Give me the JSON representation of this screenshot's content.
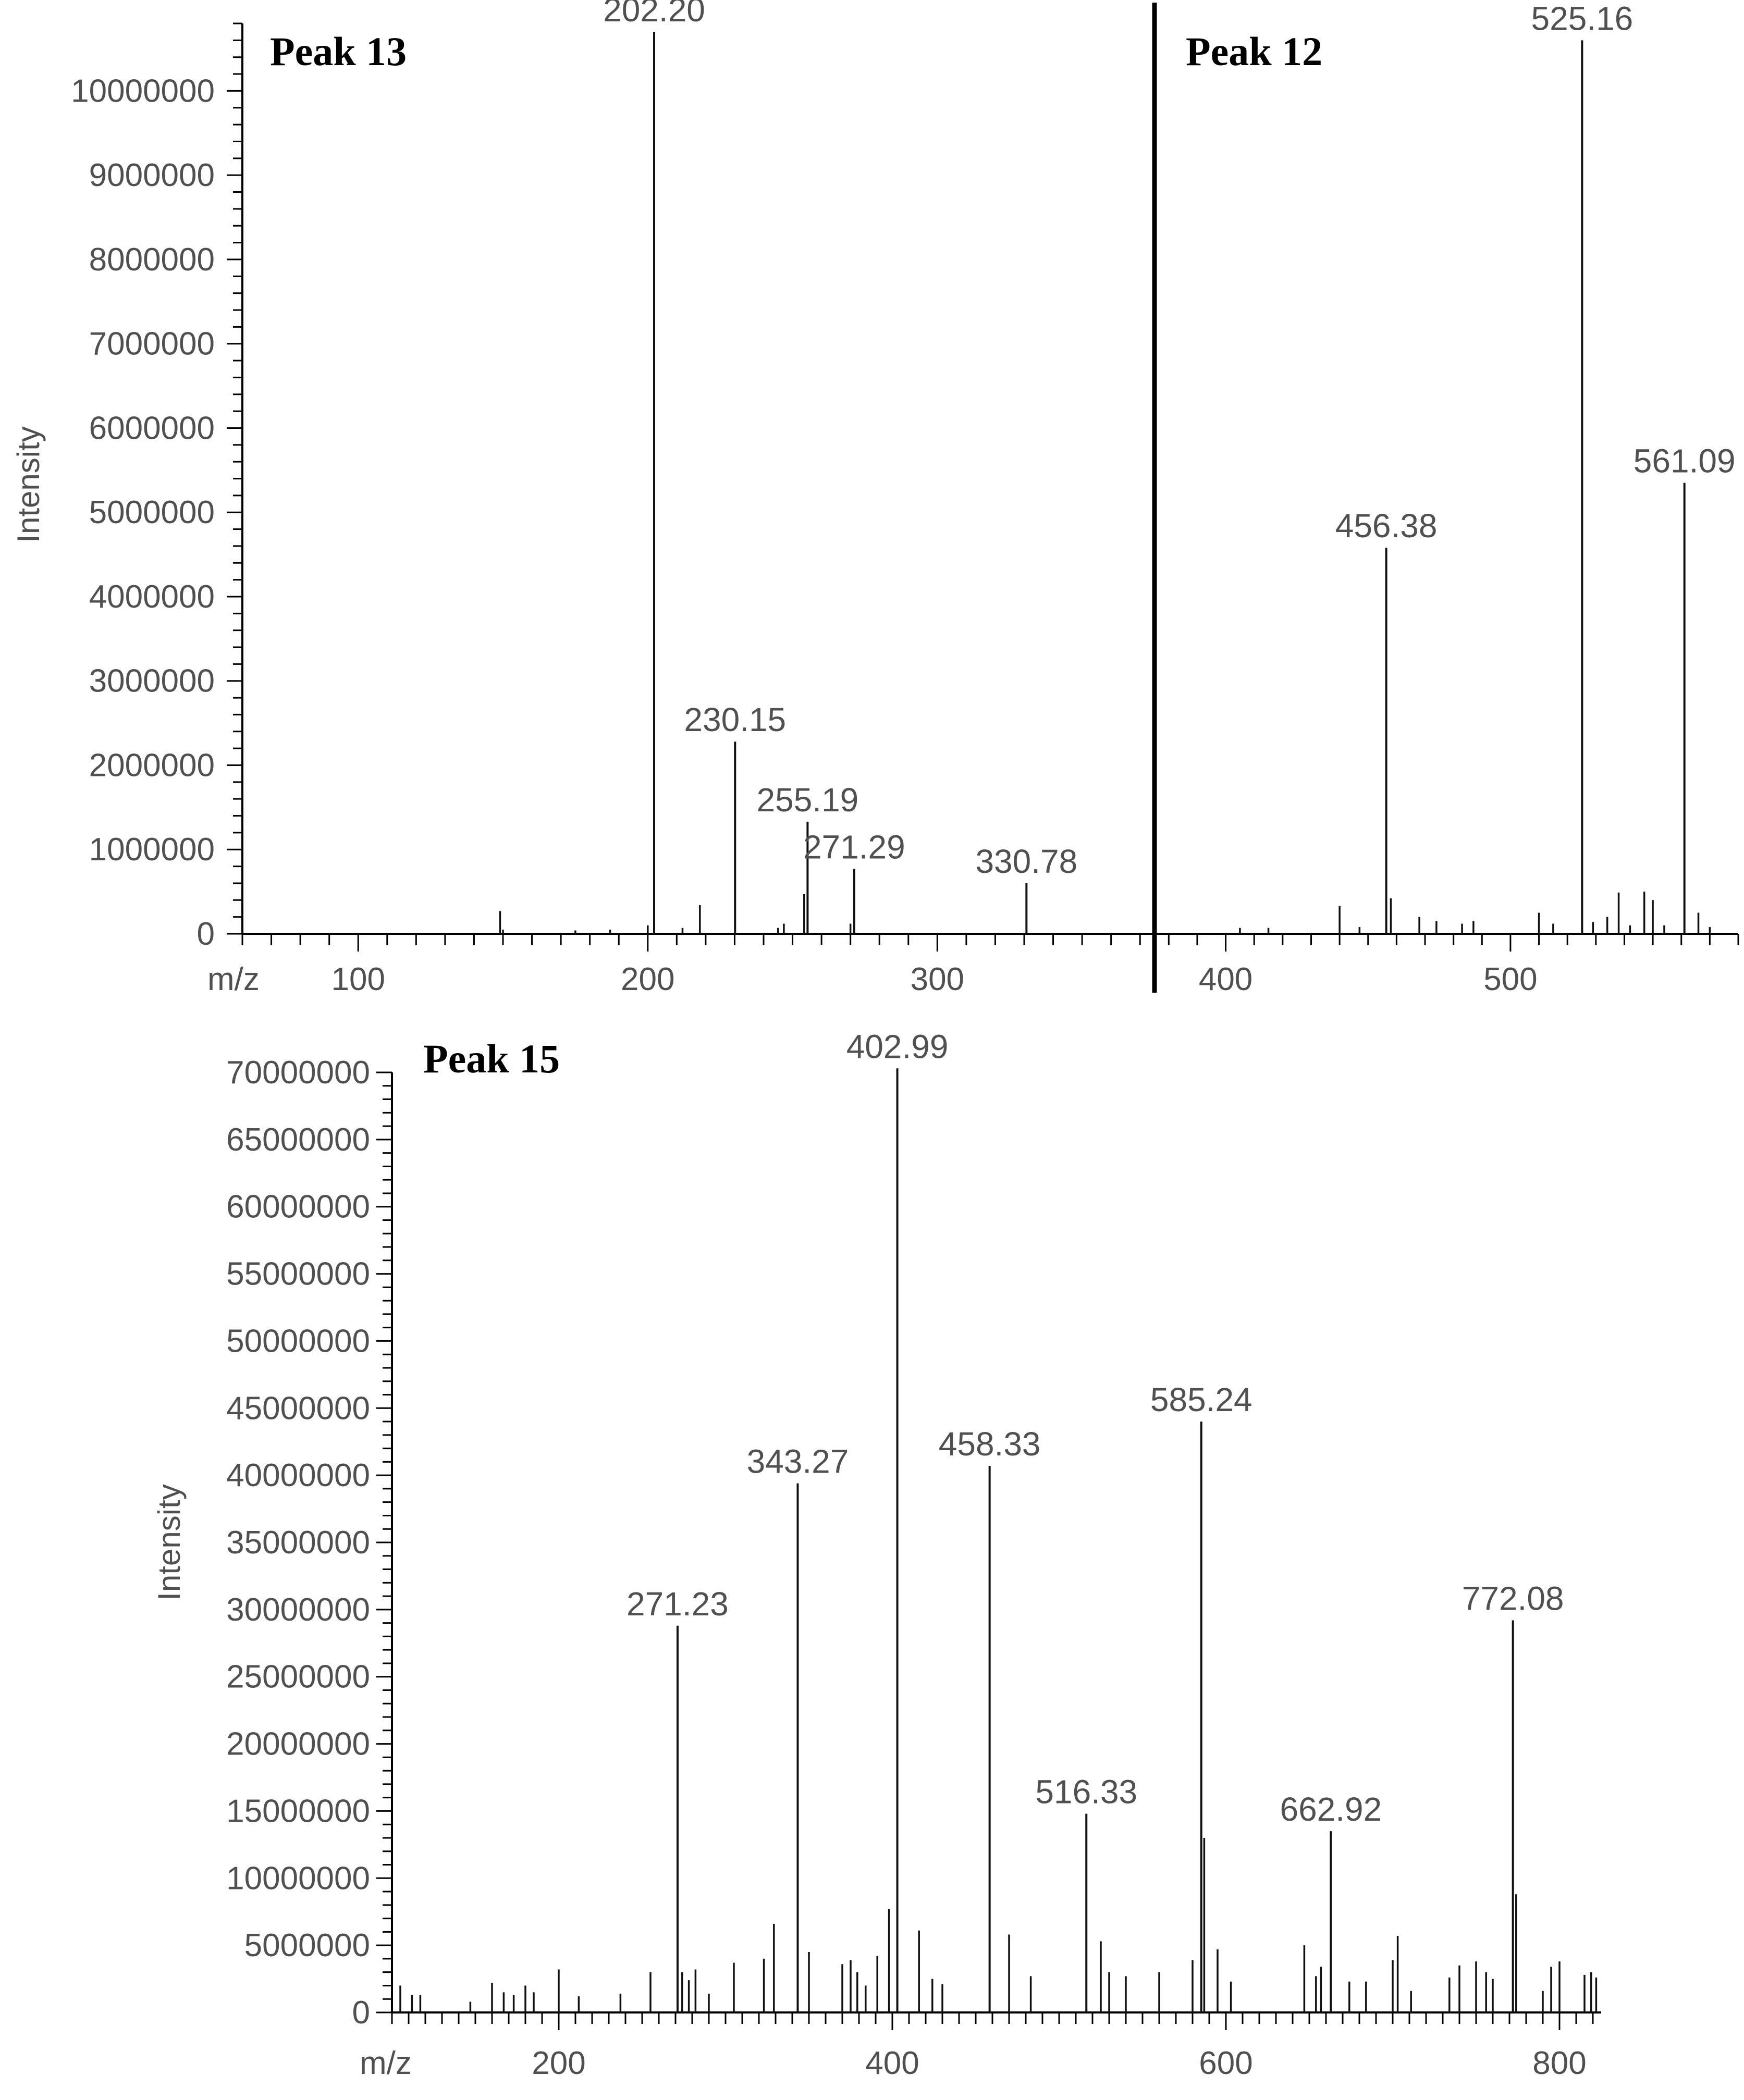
{
  "chart_data": [
    {
      "type": "bar",
      "panel_label": "Peak 13",
      "xlabel": "m/z",
      "ylabel": "Intensity",
      "xlim": [
        60,
        375
      ],
      "ylim": [
        0,
        10800000
      ],
      "x_ticks": [
        100,
        200,
        300
      ],
      "y_ticks": [
        0,
        1000000,
        2000000,
        3000000,
        4000000,
        5000000,
        6000000,
        7000000,
        8000000,
        9000000,
        10000000
      ],
      "labeled_peaks": [
        {
          "mz": 202.2,
          "label": "202.20",
          "intensity": 10700000
        },
        {
          "mz": 230.15,
          "label": "230.15",
          "intensity": 2280000
        },
        {
          "mz": 255.19,
          "label": "255.19",
          "intensity": 1330000
        },
        {
          "mz": 271.29,
          "label": "271.29",
          "intensity": 770000
        },
        {
          "mz": 330.78,
          "label": "330.78",
          "intensity": 600000
        }
      ],
      "minor_peaks": [
        {
          "mz": 149,
          "intensity": 270000
        },
        {
          "mz": 150,
          "intensity": 50000
        },
        {
          "mz": 175,
          "intensity": 40000
        },
        {
          "mz": 187,
          "intensity": 50000
        },
        {
          "mz": 200,
          "intensity": 100000
        },
        {
          "mz": 212,
          "intensity": 70000
        },
        {
          "mz": 218,
          "intensity": 340000
        },
        {
          "mz": 245,
          "intensity": 70000
        },
        {
          "mz": 247,
          "intensity": 120000
        },
        {
          "mz": 254,
          "intensity": 470000
        },
        {
          "mz": 270,
          "intensity": 120000
        }
      ]
    },
    {
      "type": "bar",
      "panel_label": "Peak 12",
      "xlim": [
        375,
        580
      ],
      "ylim": [
        0,
        10800000
      ],
      "x_ticks": [
        400,
        500
      ],
      "labeled_peaks": [
        {
          "mz": 456.38,
          "label": "456.38",
          "intensity": 4580000
        },
        {
          "mz": 525.16,
          "label": "525.16",
          "intensity": 10600000
        },
        {
          "mz": 561.09,
          "label": "561.09",
          "intensity": 5350000
        }
      ],
      "minor_peaks": [
        {
          "mz": 405,
          "intensity": 70000
        },
        {
          "mz": 415,
          "intensity": 70000
        },
        {
          "mz": 440,
          "intensity": 330000
        },
        {
          "mz": 447,
          "intensity": 80000
        },
        {
          "mz": 458,
          "intensity": 420000
        },
        {
          "mz": 468,
          "intensity": 200000
        },
        {
          "mz": 474,
          "intensity": 150000
        },
        {
          "mz": 483,
          "intensity": 120000
        },
        {
          "mz": 487,
          "intensity": 150000
        },
        {
          "mz": 510,
          "intensity": 250000
        },
        {
          "mz": 515,
          "intensity": 120000
        },
        {
          "mz": 529,
          "intensity": 140000
        },
        {
          "mz": 534,
          "intensity": 200000
        },
        {
          "mz": 538,
          "intensity": 490000
        },
        {
          "mz": 542,
          "intensity": 100000
        },
        {
          "mz": 547,
          "intensity": 500000
        },
        {
          "mz": 550,
          "intensity": 400000
        },
        {
          "mz": 554,
          "intensity": 100000
        },
        {
          "mz": 566,
          "intensity": 250000
        },
        {
          "mz": 570,
          "intensity": 80000
        }
      ]
    },
    {
      "type": "bar",
      "panel_label": "Peak 15",
      "xlabel": "m/z",
      "ylabel": "Intensity",
      "xlim": [
        100,
        825
      ],
      "ylim": [
        0,
        70000000
      ],
      "x_ticks": [
        200,
        400,
        600,
        800
      ],
      "y_ticks": [
        0,
        5000000,
        10000000,
        15000000,
        20000000,
        25000000,
        30000000,
        35000000,
        40000000,
        45000000,
        50000000,
        55000000,
        60000000,
        65000000,
        70000000
      ],
      "labeled_peaks": [
        {
          "mz": 271.23,
          "label": "271.23",
          "intensity": 28800000
        },
        {
          "mz": 343.27,
          "label": "343.27",
          "intensity": 39400000
        },
        {
          "mz": 402.99,
          "label": "402.99",
          "intensity": 70300000
        },
        {
          "mz": 458.33,
          "label": "458.33",
          "intensity": 40700000
        },
        {
          "mz": 516.33,
          "label": "516.33",
          "intensity": 14800000
        },
        {
          "mz": 585.24,
          "label": "585.24",
          "intensity": 44000000
        },
        {
          "mz": 662.92,
          "label": "662.92",
          "intensity": 13500000
        },
        {
          "mz": 772.08,
          "label": "772.08",
          "intensity": 29200000
        }
      ],
      "minor_peaks": [
        {
          "mz": 105,
          "intensity": 2000000
        },
        {
          "mz": 112,
          "intensity": 1300000
        },
        {
          "mz": 117,
          "intensity": 1300000
        },
        {
          "mz": 147,
          "intensity": 800000
        },
        {
          "mz": 160,
          "intensity": 2200000
        },
        {
          "mz": 167,
          "intensity": 1500000
        },
        {
          "mz": 173,
          "intensity": 1300000
        },
        {
          "mz": 180,
          "intensity": 2000000
        },
        {
          "mz": 185,
          "intensity": 1500000
        },
        {
          "mz": 200,
          "intensity": 3200000
        },
        {
          "mz": 212,
          "intensity": 1200000
        },
        {
          "mz": 237,
          "intensity": 1400000
        },
        {
          "mz": 255,
          "intensity": 3000000
        },
        {
          "mz": 274,
          "intensity": 3000000
        },
        {
          "mz": 278,
          "intensity": 2400000
        },
        {
          "mz": 282,
          "intensity": 3200000
        },
        {
          "mz": 290,
          "intensity": 1400000
        },
        {
          "mz": 305,
          "intensity": 3700000
        },
        {
          "mz": 323,
          "intensity": 4000000
        },
        {
          "mz": 329,
          "intensity": 6600000
        },
        {
          "mz": 350,
          "intensity": 4500000
        },
        {
          "mz": 370,
          "intensity": 3600000
        },
        {
          "mz": 375,
          "intensity": 3900000
        },
        {
          "mz": 379,
          "intensity": 3000000
        },
        {
          "mz": 384,
          "intensity": 2000000
        },
        {
          "mz": 391,
          "intensity": 4200000
        },
        {
          "mz": 398,
          "intensity": 7700000
        },
        {
          "mz": 416,
          "intensity": 6100000
        },
        {
          "mz": 424,
          "intensity": 2500000
        },
        {
          "mz": 430,
          "intensity": 2100000
        },
        {
          "mz": 470,
          "intensity": 5800000
        },
        {
          "mz": 483,
          "intensity": 2700000
        },
        {
          "mz": 525,
          "intensity": 5300000
        },
        {
          "mz": 530,
          "intensity": 3000000
        },
        {
          "mz": 540,
          "intensity": 2700000
        },
        {
          "mz": 560,
          "intensity": 3000000
        },
        {
          "mz": 580,
          "intensity": 3900000
        },
        {
          "mz": 587,
          "intensity": 13000000
        },
        {
          "mz": 595,
          "intensity": 4700000
        },
        {
          "mz": 603,
          "intensity": 2300000
        },
        {
          "mz": 647,
          "intensity": 5000000
        },
        {
          "mz": 654,
          "intensity": 2700000
        },
        {
          "mz": 657,
          "intensity": 3400000
        },
        {
          "mz": 674,
          "intensity": 2300000
        },
        {
          "mz": 684,
          "intensity": 2300000
        },
        {
          "mz": 700,
          "intensity": 3900000
        },
        {
          "mz": 703,
          "intensity": 5700000
        },
        {
          "mz": 711,
          "intensity": 1600000
        },
        {
          "mz": 734,
          "intensity": 2600000
        },
        {
          "mz": 740,
          "intensity": 3500000
        },
        {
          "mz": 750,
          "intensity": 3800000
        },
        {
          "mz": 756,
          "intensity": 3000000
        },
        {
          "mz": 760,
          "intensity": 2500000
        },
        {
          "mz": 774,
          "intensity": 8800000
        },
        {
          "mz": 790,
          "intensity": 1600000
        },
        {
          "mz": 795,
          "intensity": 3400000
        },
        {
          "mz": 800,
          "intensity": 3800000
        },
        {
          "mz": 815,
          "intensity": 2800000
        },
        {
          "mz": 819,
          "intensity": 3000000
        },
        {
          "mz": 822,
          "intensity": 2600000
        }
      ]
    }
  ]
}
